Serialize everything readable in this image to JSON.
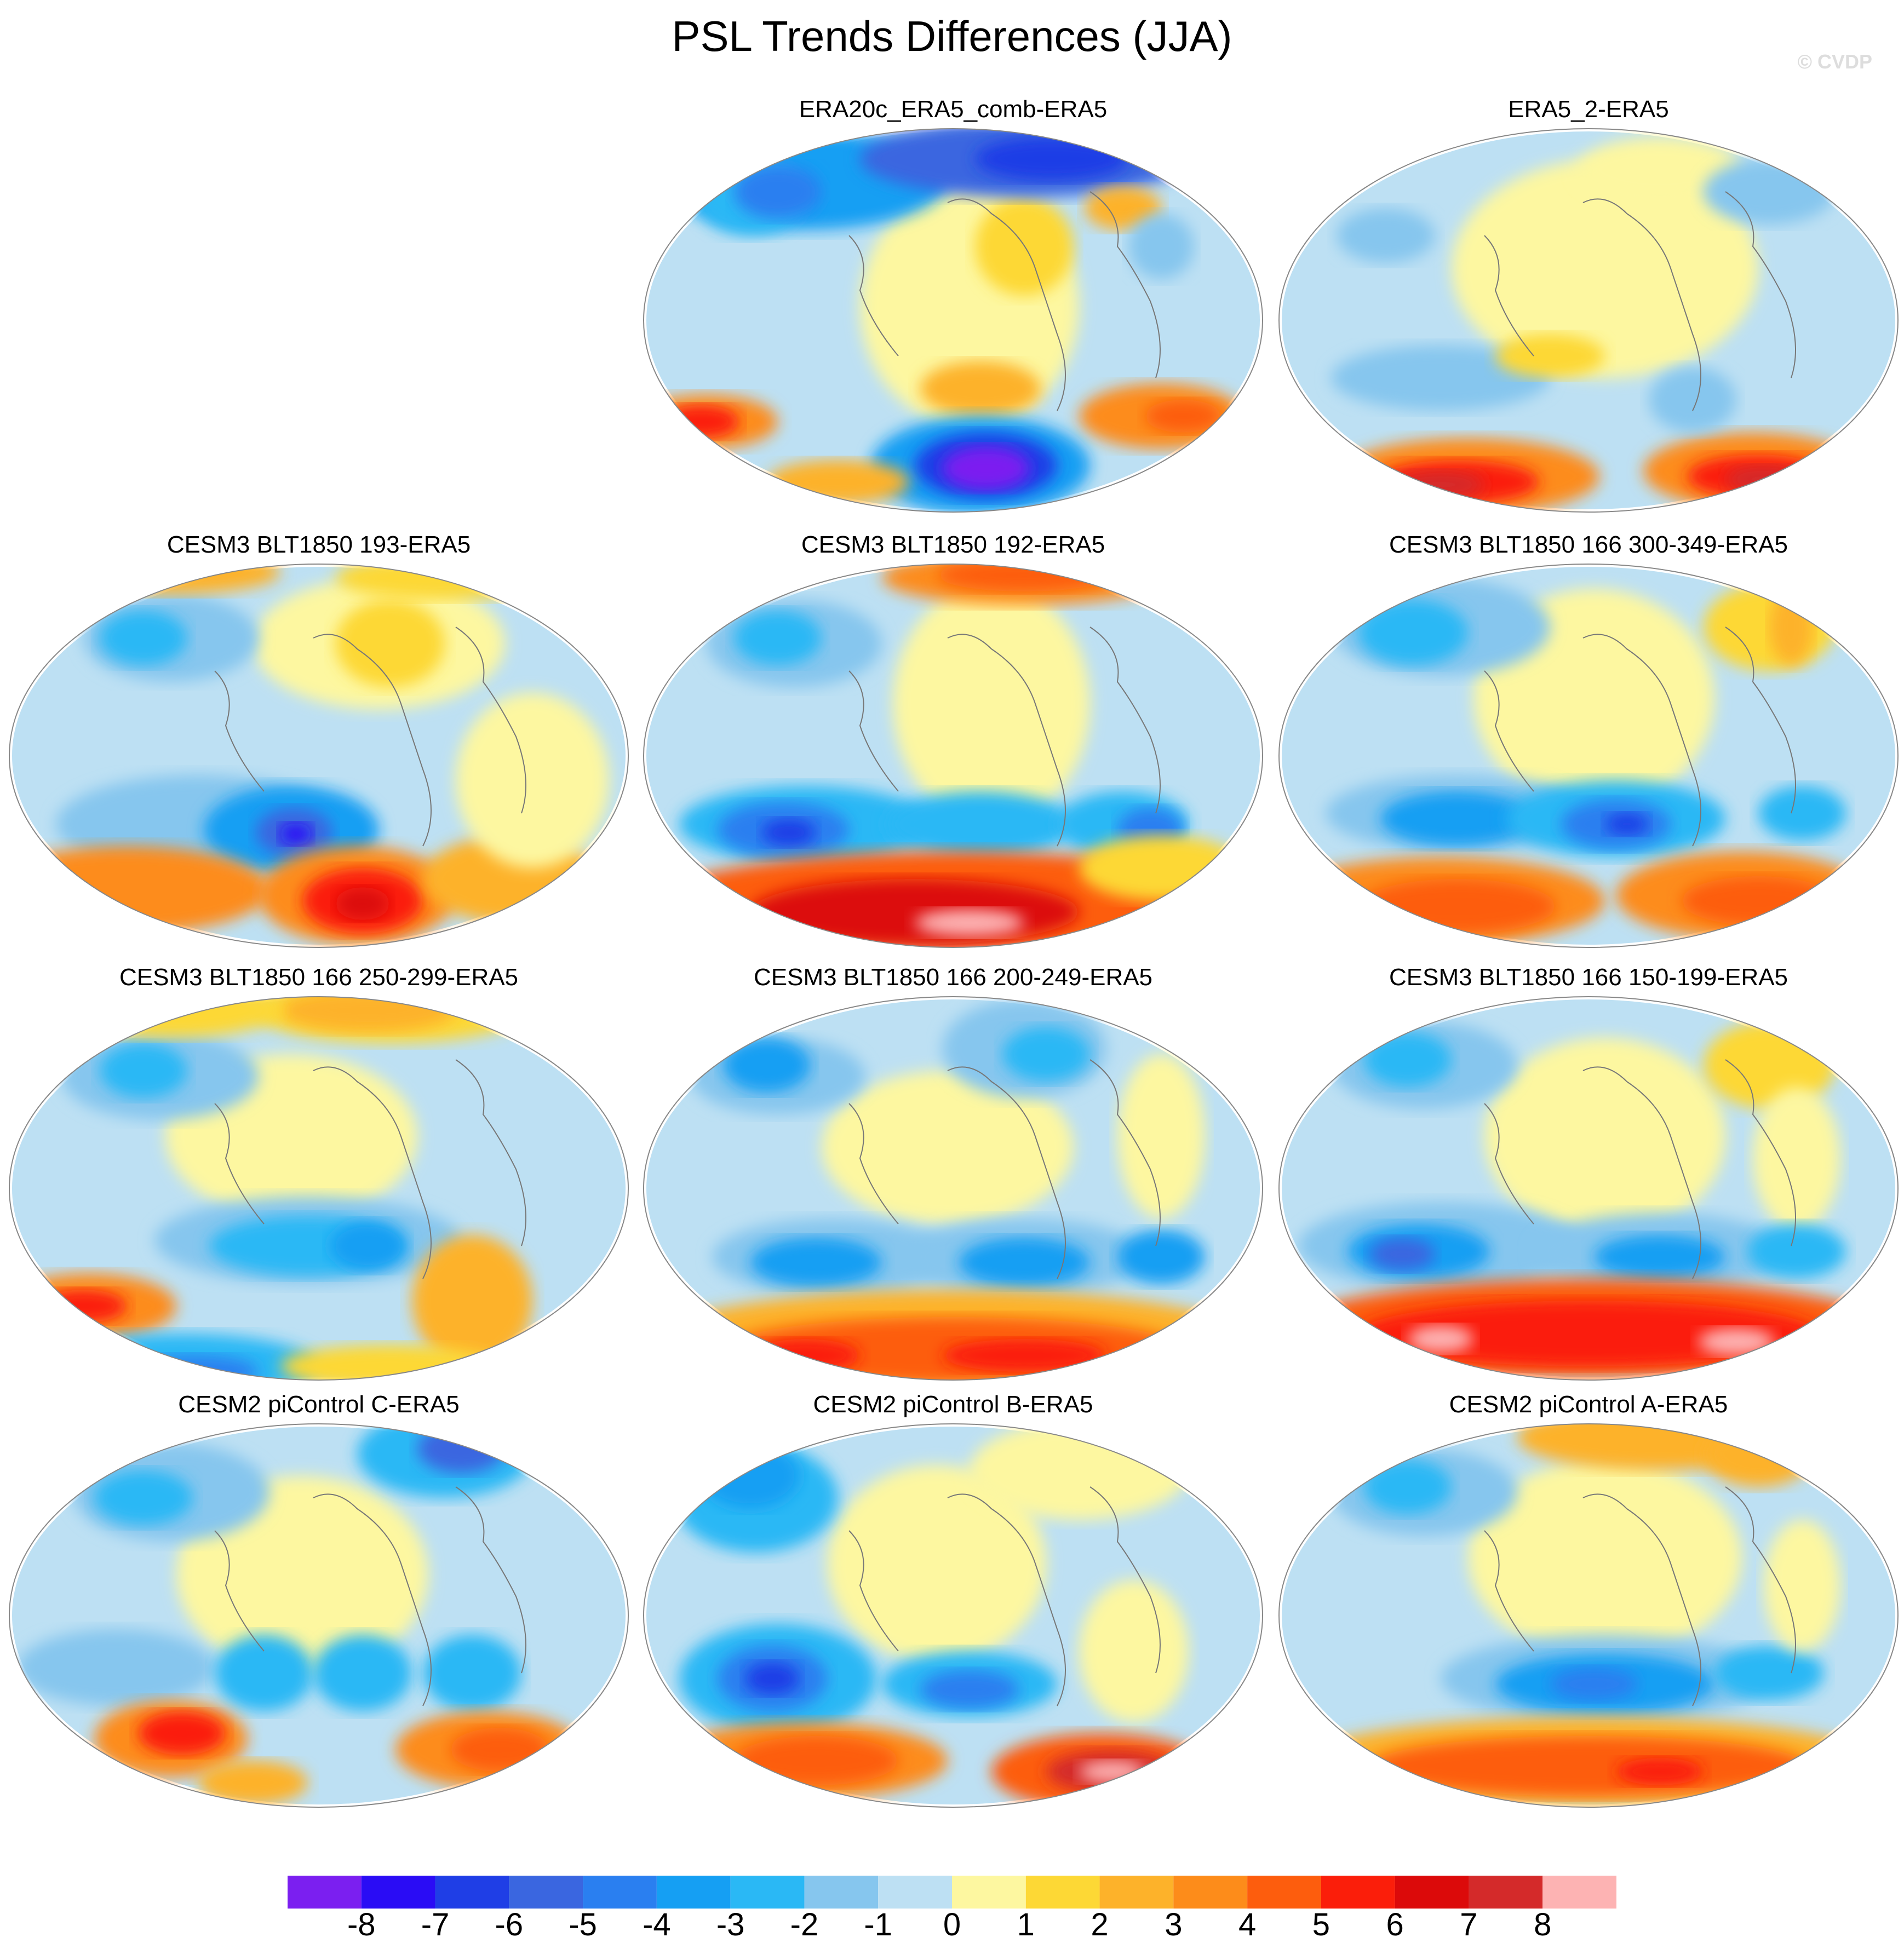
{
  "title": "PSL Trends Differences (JJA)",
  "watermark": "© CVDP",
  "panels": [
    {
      "title": "ERA20c_ERA5_comb-ERA5",
      "pattern": "era20c"
    },
    {
      "title": "ERA5_2-ERA5",
      "pattern": "era5_2"
    },
    {
      "title": "CESM3 BLT1850 193-ERA5",
      "pattern": "p193"
    },
    {
      "title": "CESM3 BLT1850 192-ERA5",
      "pattern": "p192"
    },
    {
      "title": "CESM3 BLT1850 166 300-349-ERA5",
      "pattern": "p300"
    },
    {
      "title": "CESM3 BLT1850 166 250-299-ERA5",
      "pattern": "p250"
    },
    {
      "title": "CESM3 BLT1850 166 200-249-ERA5",
      "pattern": "p200"
    },
    {
      "title": "CESM3 BLT1850 166 150-199-ERA5",
      "pattern": "p150"
    },
    {
      "title": "CESM2 piControl C-ERA5",
      "pattern": "pC"
    },
    {
      "title": "CESM2 piControl B-ERA5",
      "pattern": "pB"
    },
    {
      "title": "CESM2 piControl A-ERA5",
      "pattern": "pA"
    }
  ],
  "colorbar": {
    "colors": [
      "#7b1ff0",
      "#2a0cf5",
      "#1f3ee6",
      "#3a66e0",
      "#2a7ff0",
      "#159ff3",
      "#2ab8f5",
      "#86c6ee",
      "#bde0f3",
      "#fdf7a0",
      "#fdd835",
      "#fdb22a",
      "#fd8c1a",
      "#fd5d0d",
      "#fb1e0a",
      "#dc0a0a",
      "#d42a2a",
      "#fdb3b3"
    ],
    "tick_labels": [
      "-8",
      "-7",
      "-6",
      "-5",
      "-4",
      "-3",
      "-2",
      "-1",
      "0",
      "1",
      "2",
      "3",
      "4",
      "5",
      "6",
      "7",
      "8"
    ]
  }
}
